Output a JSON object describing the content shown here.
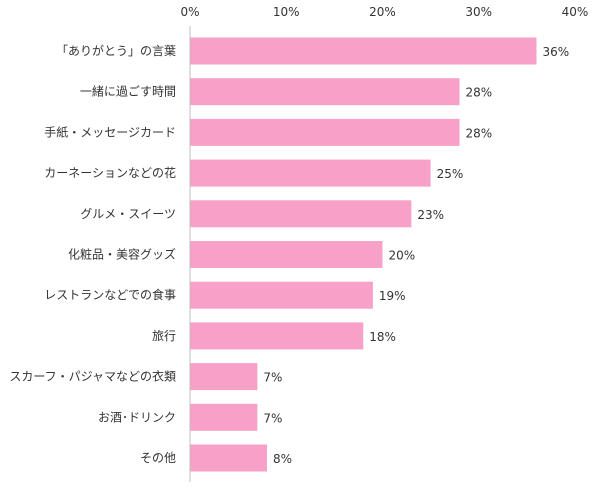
{
  "chart_data": {
    "type": "bar",
    "orientation": "horizontal",
    "categories": [
      "「ありがとう」の言葉",
      "一緒に過ごす時間",
      "手紙・メッセージカード",
      "カーネーションなどの花",
      "グルメ・スイーツ",
      "化粧品・美容グッズ",
      "レストランなどでの食事",
      "旅行",
      "スカーフ・パジャマなどの衣類",
      "お酒･ドリンク",
      "その他"
    ],
    "values": [
      36,
      28,
      28,
      25,
      23,
      20,
      19,
      18,
      7,
      7,
      8
    ],
    "value_labels": [
      "36%",
      "28%",
      "28%",
      "25%",
      "23%",
      "20%",
      "19%",
      "18%",
      "7%",
      "7%",
      "8%"
    ],
    "xlim": [
      0,
      40
    ],
    "xticks": [
      0,
      10,
      20,
      30,
      40
    ],
    "xtick_labels": [
      "0%",
      "10%",
      "20%",
      "30%",
      "40%"
    ],
    "title": "",
    "xlabel": "",
    "ylabel": "",
    "grid": false,
    "axis_position": "top",
    "bar_color": "#f7a0c8",
    "axis_color": "#bfbfbf"
  }
}
